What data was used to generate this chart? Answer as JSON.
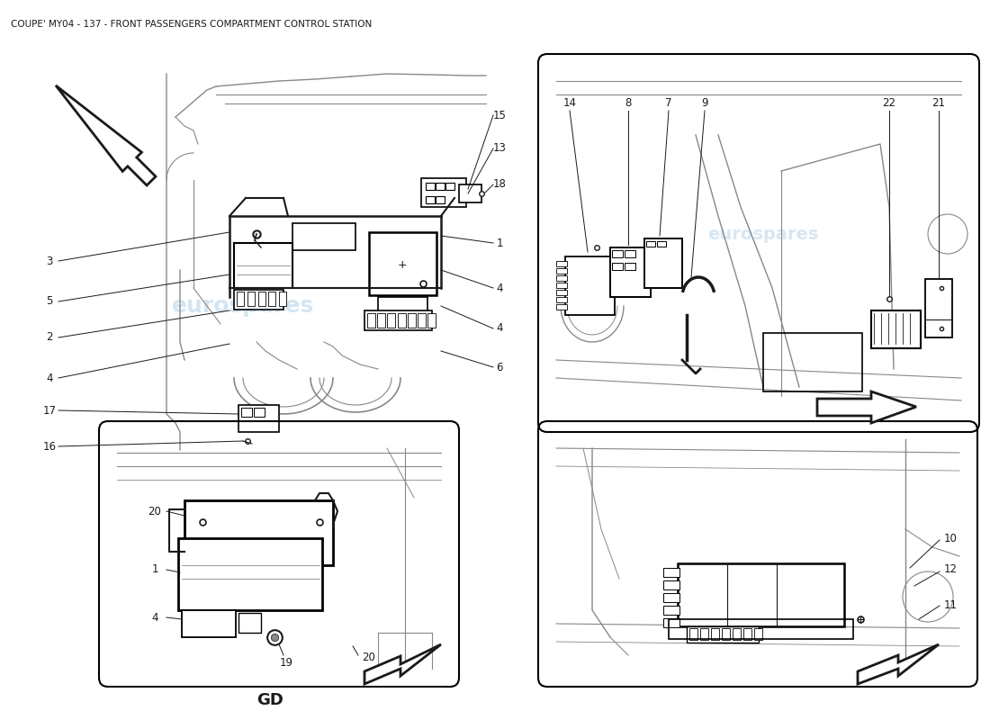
{
  "title": "COUPE' MY04 - 137 - FRONT PASSENGERS COMPARTMENT CONTROL STATION",
  "title_fontsize": 7.5,
  "bg_color": "#ffffff",
  "line_color": "#1a1a1a",
  "light_line": "#888888",
  "lighter_line": "#aaaaaa",
  "watermark_color": "#b8d4e8",
  "label_size": 8.5,
  "fig_width": 11.0,
  "fig_height": 8.0
}
